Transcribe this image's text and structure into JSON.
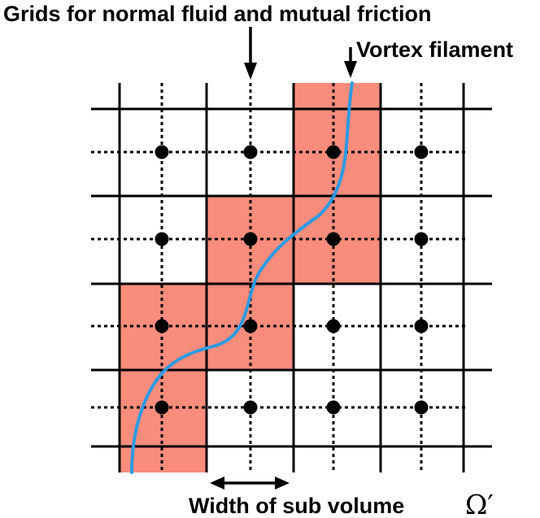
{
  "labels": {
    "grids": "Grids for normal fluid and mutual friction",
    "vortex": "Vortex filament",
    "width": "Width of sub volume",
    "omega_symbol": "Ω′"
  },
  "grid": {
    "columns": 5,
    "rows": 4,
    "dotted_grid_columns": 4,
    "dotted_grid_rows": 4
  },
  "highlighted_cells": [
    {
      "col": 2,
      "row": 0
    },
    {
      "col": 1,
      "row": 1
    },
    {
      "col": 2,
      "row": 1
    },
    {
      "col": 0,
      "row": 2
    },
    {
      "col": 1,
      "row": 2
    },
    {
      "col": 0,
      "row": 3
    }
  ],
  "colors": {
    "cell_fill": "#fa8c7c",
    "vortex": "#2b9be3",
    "line": "#000000"
  }
}
